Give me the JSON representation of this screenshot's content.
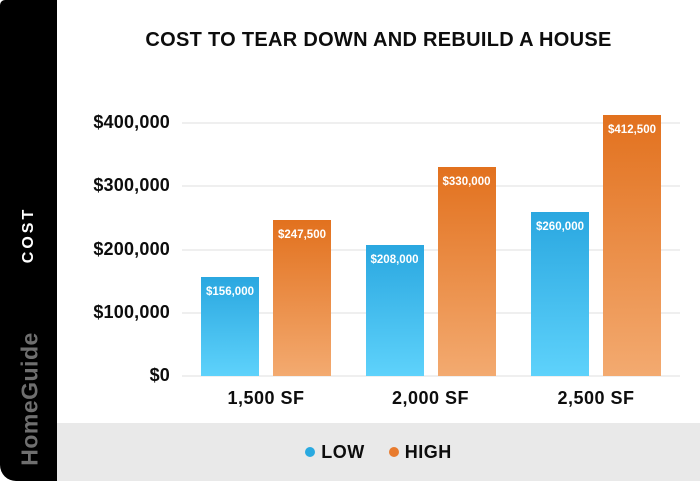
{
  "sidebar": {
    "cost_label": "COST",
    "brand": "HomeGuide"
  },
  "title": "COST TO TEAR DOWN AND REBUILD A HOUSE",
  "chart_data": {
    "type": "bar",
    "title": "COST TO TEAR DOWN AND REBUILD A HOUSE",
    "categories": [
      "1,500 SF",
      "2,000 SF",
      "2,500 SF"
    ],
    "series": [
      {
        "name": "LOW",
        "values": [
          156000,
          208000,
          260000
        ],
        "labels": [
          "$156,000",
          "$208,000",
          "$260,000"
        ],
        "color_top": "#2AA7E0",
        "color_bottom": "#5ED2FB",
        "dot_color": "#29A9E0"
      },
      {
        "name": "HIGH",
        "values": [
          247500,
          330000,
          412500
        ],
        "labels": [
          "$247,500",
          "$330,000",
          "$412,500"
        ],
        "color_top": "#E2711E",
        "color_bottom": "#F3AA70",
        "dot_color": "#E87B2E"
      }
    ],
    "xlabel": "",
    "ylabel": "COST",
    "ylim": [
      0,
      400000
    ],
    "ytick_step": 100000,
    "yticks": [
      "$0",
      "$100,000",
      "$200,000",
      "$300,000",
      "$400,000"
    ],
    "grid": true,
    "legend_position": "bottom"
  },
  "colors": {
    "sidebar_bg": "#000000",
    "brand_text": "#6F6F6F",
    "grid": "#EFEFEF",
    "legend_band_bg": "#E9E9E9",
    "text": "#0D0D0D",
    "bar_label_text": "#FFFFFF"
  }
}
